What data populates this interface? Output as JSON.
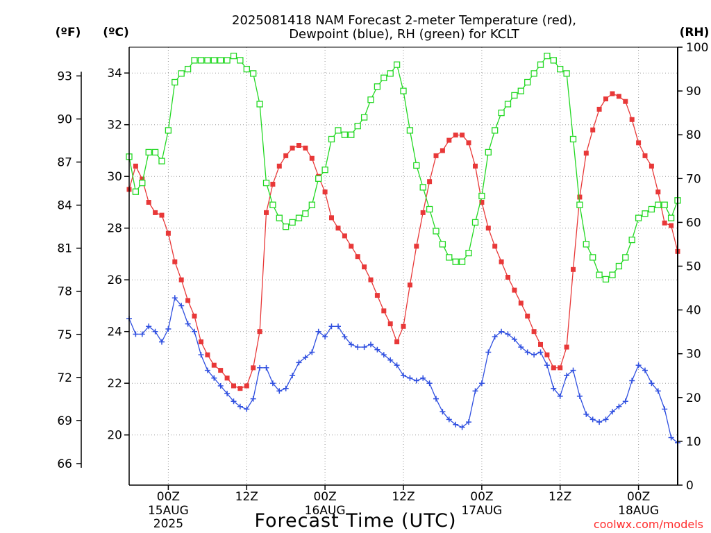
{
  "title_lines": [
    "2025081418 NAM Forecast 2-meter Temperature (red),",
    "Dewpoint (blue), RH (green) for KCLT"
  ],
  "credit": "coolwx.com/models",
  "chart_data": {
    "type": "line",
    "title": "2025081418 NAM Forecast 2-meter Temperature (red), Dewpoint (blue), RH (green) for KCLT",
    "xlabel": "Forecast Time (UTC)",
    "x_unit": "hour",
    "xlim": [
      -6,
      78
    ],
    "x_ticks": [
      {
        "hour": 0,
        "label": "00Z",
        "sublabels": [
          "15AUG",
          "2025"
        ]
      },
      {
        "hour": 12,
        "label": "12Z",
        "sublabels": []
      },
      {
        "hour": 24,
        "label": "00Z",
        "sublabels": [
          "16AUG"
        ]
      },
      {
        "hour": 36,
        "label": "12Z",
        "sublabels": []
      },
      {
        "hour": 48,
        "label": "00Z",
        "sublabels": [
          "17AUG"
        ]
      },
      {
        "hour": 60,
        "label": "12Z",
        "sublabels": []
      },
      {
        "hour": 72,
        "label": "00Z",
        "sublabels": [
          "18AUG"
        ]
      }
    ],
    "axes": {
      "left_f": {
        "unit_label": "(ºF)",
        "range": [
          64.5,
          95
        ],
        "ticks": [
          66,
          69,
          72,
          75,
          78,
          81,
          84,
          87,
          90,
          93
        ]
      },
      "left_c": {
        "unit_label": "(ºC)",
        "range": [
          18.06,
          35
        ],
        "ticks": [
          20,
          22,
          24,
          26,
          28,
          30,
          32,
          34
        ]
      },
      "right_rh": {
        "unit_label": "(RH)",
        "range": [
          0,
          100
        ],
        "ticks": [
          0,
          10,
          20,
          30,
          40,
          50,
          60,
          70,
          80,
          90,
          100
        ]
      }
    },
    "grid": true,
    "series": [
      {
        "name": "Temperature",
        "color": "#e83838",
        "marker": "filled-square",
        "axis": "left_c",
        "x": [
          -6,
          -5,
          -4,
          -3,
          -2,
          -1,
          0,
          1,
          2,
          3,
          4,
          5,
          6,
          7,
          8,
          9,
          10,
          11,
          12,
          13,
          14,
          15,
          16,
          17,
          18,
          19,
          20,
          21,
          22,
          23,
          24,
          25,
          26,
          27,
          28,
          29,
          30,
          31,
          32,
          33,
          34,
          35,
          36,
          37,
          38,
          39,
          40,
          41,
          42,
          43,
          44,
          45,
          46,
          47,
          48,
          49,
          50,
          51,
          52,
          53,
          54,
          55,
          56,
          57,
          58,
          59,
          60,
          61,
          62,
          63,
          64,
          65,
          66,
          67,
          68,
          69,
          70,
          71,
          72,
          73,
          74,
          75,
          76,
          77,
          78
        ],
        "values": [
          29.5,
          30.4,
          29.9,
          29.0,
          28.6,
          28.5,
          27.8,
          26.7,
          26.0,
          25.2,
          24.6,
          23.6,
          23.1,
          22.7,
          22.5,
          22.2,
          21.9,
          21.8,
          21.9,
          22.6,
          24.0,
          28.6,
          29.7,
          30.4,
          30.8,
          31.1,
          31.2,
          31.1,
          30.7,
          30.0,
          29.4,
          28.4,
          28.0,
          27.7,
          27.3,
          26.9,
          26.5,
          26.0,
          25.4,
          24.8,
          24.3,
          23.6,
          24.2,
          25.8,
          27.3,
          28.6,
          29.8,
          30.8,
          31.0,
          31.4,
          31.6,
          31.6,
          31.3,
          30.4,
          29.0,
          28.0,
          27.3,
          26.7,
          26.1,
          25.6,
          25.1,
          24.6,
          24.0,
          23.5,
          23.1,
          22.6,
          22.6,
          23.4,
          26.4,
          29.2,
          30.9,
          31.8,
          32.6,
          33.0,
          33.2,
          33.1,
          32.9,
          32.2,
          31.3,
          30.8,
          30.4,
          29.4,
          28.2,
          28.1,
          27.1
        ]
      },
      {
        "name": "Dewpoint",
        "color": "#2f4fe0",
        "marker": "plus",
        "axis": "left_c",
        "x": [
          -6,
          -5,
          -4,
          -3,
          -2,
          -1,
          0,
          1,
          2,
          3,
          4,
          5,
          6,
          7,
          8,
          9,
          10,
          11,
          12,
          13,
          14,
          15,
          16,
          17,
          18,
          19,
          20,
          21,
          22,
          23,
          24,
          25,
          26,
          27,
          28,
          29,
          30,
          31,
          32,
          33,
          34,
          35,
          36,
          37,
          38,
          39,
          40,
          41,
          42,
          43,
          44,
          45,
          46,
          47,
          48,
          49,
          50,
          51,
          52,
          53,
          54,
          55,
          56,
          57,
          58,
          59,
          60,
          61,
          62,
          63,
          64,
          65,
          66,
          67,
          68,
          69,
          70,
          71,
          72,
          73,
          74,
          75,
          76,
          77,
          78
        ],
        "values": [
          24.5,
          23.9,
          23.9,
          24.2,
          24.0,
          23.6,
          24.1,
          25.3,
          25.0,
          24.3,
          24.0,
          23.1,
          22.5,
          22.2,
          21.9,
          21.6,
          21.3,
          21.1,
          21.0,
          21.4,
          22.6,
          22.6,
          22.0,
          21.7,
          21.8,
          22.3,
          22.8,
          23.0,
          23.2,
          24.0,
          23.8,
          24.2,
          24.2,
          23.8,
          23.5,
          23.4,
          23.4,
          23.5,
          23.3,
          23.1,
          22.9,
          22.7,
          22.3,
          22.2,
          22.1,
          22.2,
          22.0,
          21.4,
          20.9,
          20.6,
          20.4,
          20.3,
          20.5,
          21.7,
          22.0,
          23.2,
          23.8,
          24.0,
          23.9,
          23.7,
          23.4,
          23.2,
          23.1,
          23.2,
          22.7,
          21.8,
          21.5,
          22.3,
          22.5,
          21.5,
          20.8,
          20.6,
          20.5,
          20.6,
          20.9,
          21.1,
          21.3,
          22.1,
          22.7,
          22.5,
          22.0,
          21.7,
          21.0,
          19.9,
          19.7
        ]
      },
      {
        "name": "RH",
        "color": "#22d822",
        "marker": "open-square",
        "axis": "right_rh",
        "x": [
          -6,
          -5,
          -4,
          -3,
          -2,
          -1,
          0,
          1,
          2,
          3,
          4,
          5,
          6,
          7,
          8,
          9,
          10,
          11,
          12,
          13,
          14,
          15,
          16,
          17,
          18,
          19,
          20,
          21,
          22,
          23,
          24,
          25,
          26,
          27,
          28,
          29,
          30,
          31,
          32,
          33,
          34,
          35,
          36,
          37,
          38,
          39,
          40,
          41,
          42,
          43,
          44,
          45,
          46,
          47,
          48,
          49,
          50,
          51,
          52,
          53,
          54,
          55,
          56,
          57,
          58,
          59,
          60,
          61,
          62,
          63,
          64,
          65,
          66,
          67,
          68,
          69,
          70,
          71,
          72,
          73,
          74,
          75,
          76,
          77,
          78
        ],
        "values": [
          75,
          67,
          69,
          76,
          76,
          74,
          81,
          92,
          94,
          95,
          97,
          97,
          97,
          97,
          97,
          97,
          98,
          97,
          95,
          94,
          87,
          69,
          64,
          61,
          59,
          60,
          61,
          62,
          64,
          70,
          72,
          79,
          81,
          80,
          80,
          82,
          84,
          88,
          91,
          93,
          94,
          96,
          90,
          81,
          73,
          68,
          63,
          58,
          55,
          52,
          51,
          51,
          53,
          60,
          66,
          76,
          81,
          85,
          87,
          89,
          90,
          92,
          94,
          96,
          98,
          97,
          95,
          94,
          79,
          64,
          55,
          52,
          48,
          47,
          48,
          50,
          52,
          56,
          61,
          62,
          63,
          64,
          64,
          61,
          65
        ]
      }
    ]
  }
}
